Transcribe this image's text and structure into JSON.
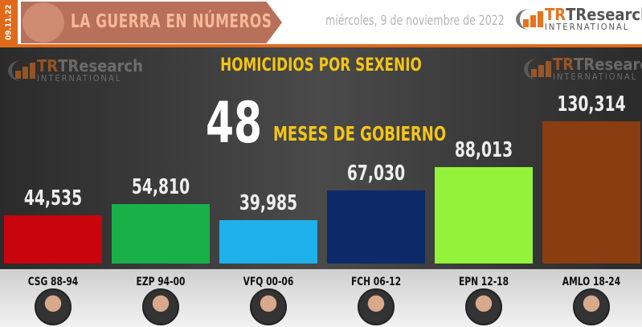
{
  "header": {
    "date_badge": "09.11.22",
    "banner_title": "LA GUERRA EN NÚMEROS",
    "date": "miércoles, 9 de noviembre de 2022",
    "logo_text": "TResearch",
    "logo_sub": "INTERNATIONAL"
  },
  "headline": {
    "months": "48",
    "months_label": "MESES DE GOBIERNO"
  },
  "chart_data": {
    "type": "bar",
    "title": "HOMICIDIOS POR SEXENIO",
    "categories": [
      "CSG 88-94",
      "EZP 94-00",
      "VFQ 00-06",
      "FCH 06-12",
      "EPN 12-18",
      "AMLO 18-24"
    ],
    "values": [
      44535,
      54810,
      39985,
      67030,
      88013,
      130314
    ],
    "labels": [
      "44,535",
      "54,810",
      "39,985",
      "67,030",
      "88,013",
      "130,314"
    ],
    "colors": [
      "#c8040c",
      "#19b04a",
      "#1eb1ec",
      "#0c2a68",
      "#93f23a",
      "#8a3d10"
    ],
    "ylim": [
      0,
      130314
    ],
    "grid": false
  }
}
